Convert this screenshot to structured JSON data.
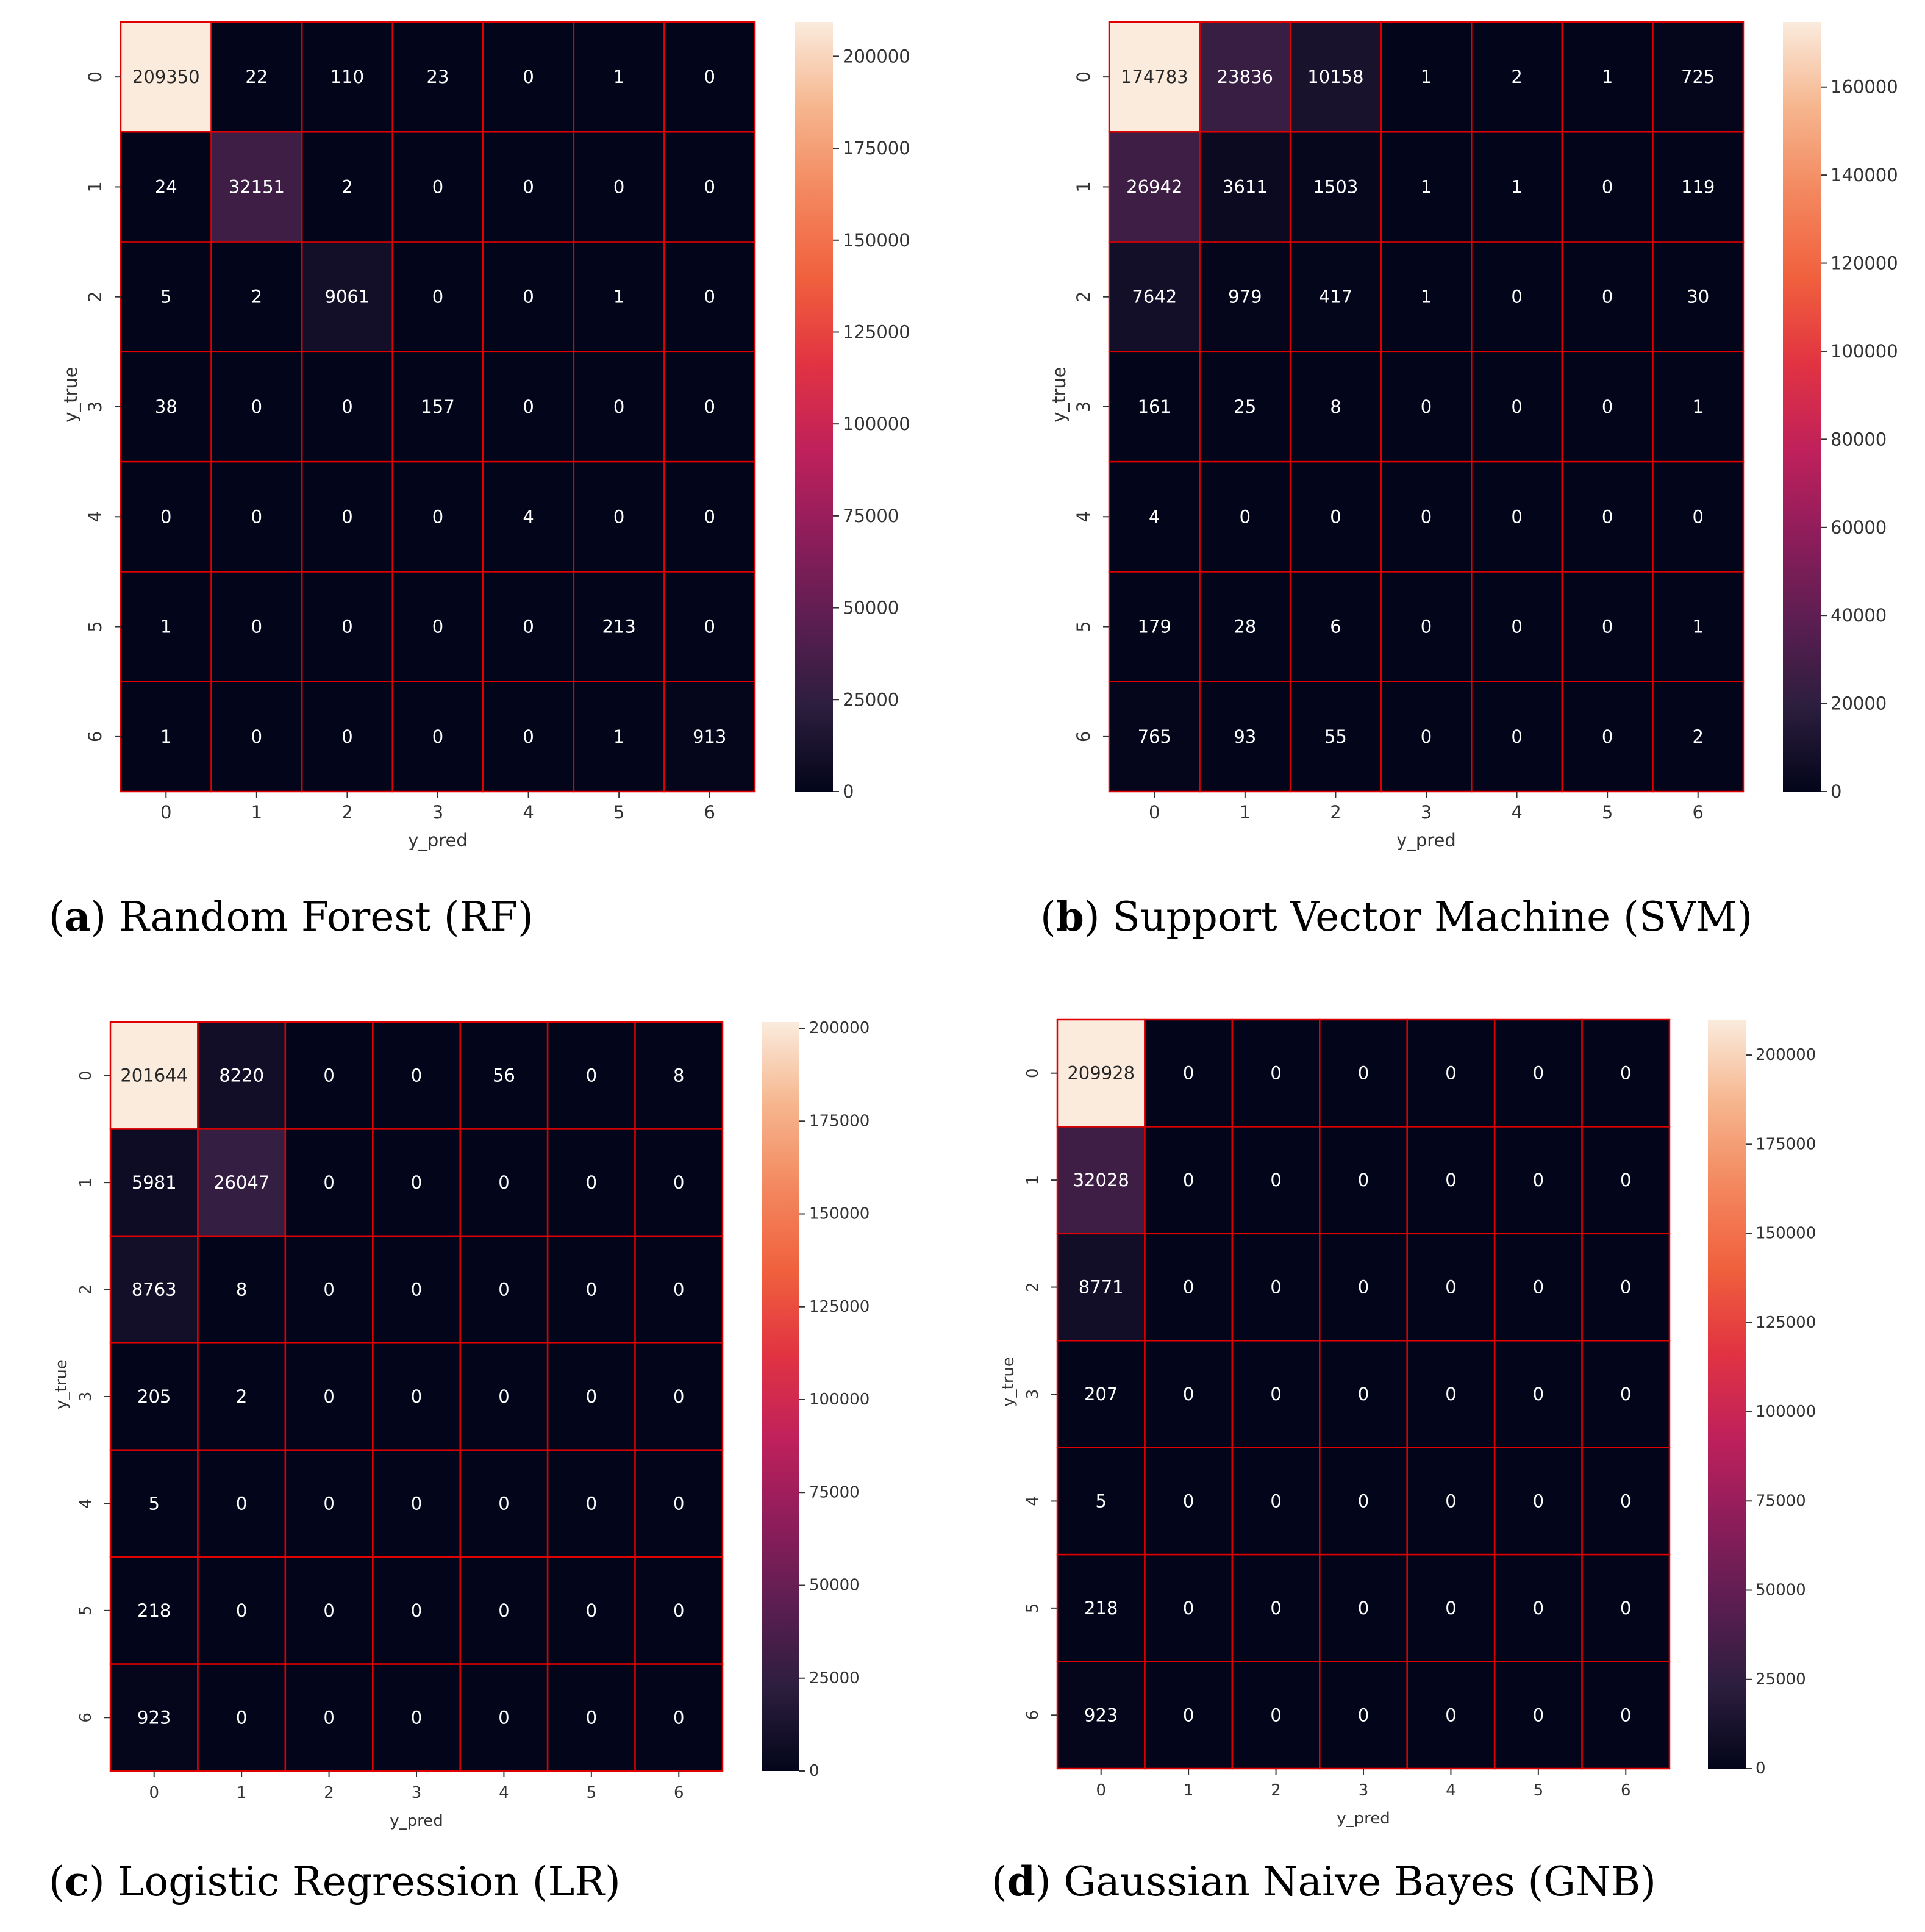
{
  "colormap": [
    "#03051a",
    "#2c1e3e",
    "#5c1e51",
    "#8e1d5b",
    "#c0215b",
    "#e13342",
    "#f0603d",
    "#f3875e",
    "#f6b58d",
    "#faebdd"
  ],
  "cell_border_color": "#e00000",
  "chart_data": [
    {
      "type": "heatmap",
      "id": "a",
      "caption_letter": "a",
      "caption_text": "Random Forest (RF)",
      "xlabel": "y_pred",
      "ylabel": "y_true",
      "x_labels": [
        "0",
        "1",
        "2",
        "3",
        "4",
        "5",
        "6"
      ],
      "y_labels": [
        "0",
        "1",
        "2",
        "3",
        "4",
        "5",
        "6"
      ],
      "vmin": 0,
      "vmax": 209350,
      "colorbar_ticks": [
        0,
        25000,
        50000,
        75000,
        100000,
        125000,
        150000,
        175000,
        200000
      ],
      "matrix": [
        [
          209350,
          22,
          110,
          23,
          0,
          1,
          0
        ],
        [
          24,
          32151,
          2,
          0,
          0,
          0,
          0
        ],
        [
          5,
          2,
          9061,
          0,
          0,
          1,
          0
        ],
        [
          38,
          0,
          0,
          157,
          0,
          0,
          0
        ],
        [
          0,
          0,
          0,
          0,
          4,
          0,
          0
        ],
        [
          1,
          0,
          0,
          0,
          0,
          213,
          0
        ],
        [
          1,
          0,
          0,
          0,
          0,
          1,
          913
        ]
      ]
    },
    {
      "type": "heatmap",
      "id": "b",
      "caption_letter": "b",
      "caption_text": "Support Vector Machine (SVM)",
      "xlabel": "y_pred",
      "ylabel": "y_true",
      "x_labels": [
        "0",
        "1",
        "2",
        "3",
        "4",
        "5",
        "6"
      ],
      "y_labels": [
        "0",
        "1",
        "2",
        "3",
        "4",
        "5",
        "6"
      ],
      "vmin": 0,
      "vmax": 174783,
      "colorbar_ticks": [
        0,
        20000,
        40000,
        60000,
        80000,
        100000,
        120000,
        140000,
        160000
      ],
      "matrix": [
        [
          174783,
          23836,
          10158,
          1,
          2,
          1,
          725
        ],
        [
          26942,
          3611,
          1503,
          1,
          1,
          0,
          119
        ],
        [
          7642,
          979,
          417,
          1,
          0,
          0,
          30
        ],
        [
          161,
          25,
          8,
          0,
          0,
          0,
          1
        ],
        [
          4,
          0,
          0,
          0,
          0,
          0,
          0
        ],
        [
          179,
          28,
          6,
          0,
          0,
          0,
          1
        ],
        [
          765,
          93,
          55,
          0,
          0,
          0,
          2
        ]
      ]
    },
    {
      "type": "heatmap",
      "id": "c",
      "caption_letter": "c",
      "caption_text": "Logistic Regression (LR)",
      "xlabel": "y_pred",
      "ylabel": "y_true",
      "x_labels": [
        "0",
        "1",
        "2",
        "3",
        "4",
        "5",
        "6"
      ],
      "y_labels": [
        "0",
        "1",
        "2",
        "3",
        "4",
        "5",
        "6"
      ],
      "vmin": 0,
      "vmax": 201644,
      "colorbar_ticks": [
        0,
        25000,
        50000,
        75000,
        100000,
        125000,
        150000,
        175000,
        200000
      ],
      "matrix": [
        [
          201644,
          8220,
          0,
          0,
          56,
          0,
          8
        ],
        [
          5981,
          26047,
          0,
          0,
          0,
          0,
          0
        ],
        [
          8763,
          8,
          0,
          0,
          0,
          0,
          0
        ],
        [
          205,
          2,
          0,
          0,
          0,
          0,
          0
        ],
        [
          5,
          0,
          0,
          0,
          0,
          0,
          0
        ],
        [
          218,
          0,
          0,
          0,
          0,
          0,
          0
        ],
        [
          923,
          0,
          0,
          0,
          0,
          0,
          0
        ]
      ]
    },
    {
      "type": "heatmap",
      "id": "d",
      "caption_letter": "d",
      "caption_text": "Gaussian Naive Bayes (GNB)",
      "xlabel": "y_pred",
      "ylabel": "y_true",
      "x_labels": [
        "0",
        "1",
        "2",
        "3",
        "4",
        "5",
        "6"
      ],
      "y_labels": [
        "0",
        "1",
        "2",
        "3",
        "4",
        "5",
        "6"
      ],
      "vmin": 0,
      "vmax": 209928,
      "colorbar_ticks": [
        0,
        25000,
        50000,
        75000,
        100000,
        125000,
        150000,
        175000,
        200000
      ],
      "matrix": [
        [
          209928,
          0,
          0,
          0,
          0,
          0,
          0
        ],
        [
          32028,
          0,
          0,
          0,
          0,
          0,
          0
        ],
        [
          8771,
          0,
          0,
          0,
          0,
          0,
          0
        ],
        [
          207,
          0,
          0,
          0,
          0,
          0,
          0
        ],
        [
          5,
          0,
          0,
          0,
          0,
          0,
          0
        ],
        [
          218,
          0,
          0,
          0,
          0,
          0,
          0
        ],
        [
          923,
          0,
          0,
          0,
          0,
          0,
          0
        ]
      ]
    }
  ]
}
